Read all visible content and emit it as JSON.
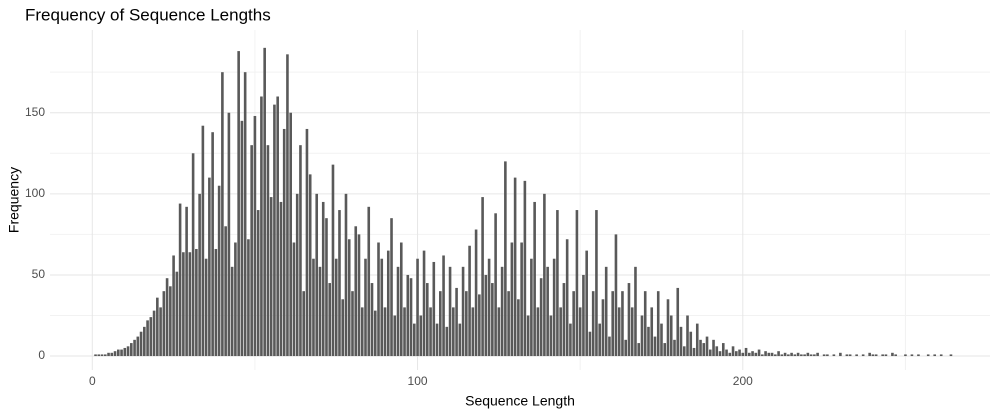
{
  "chart_data": {
    "type": "bar",
    "title": "Frequency of Sequence Lengths",
    "x_label": "Sequence Length",
    "y_label": "Frequency",
    "color": "#595959",
    "grid": true,
    "xlim": [
      -13,
      276
    ],
    "ylim": [
      -8.6,
      201
    ],
    "xticks": [
      0,
      100,
      200
    ],
    "yticks": [
      0,
      50,
      100,
      150
    ],
    "xminor": [
      50,
      150,
      250
    ],
    "yminor": [
      25,
      75,
      125,
      175
    ],
    "x": [
      1,
      2,
      3,
      4,
      5,
      6,
      7,
      8,
      9,
      10,
      11,
      12,
      13,
      14,
      15,
      16,
      17,
      18,
      19,
      20,
      21,
      22,
      23,
      24,
      25,
      26,
      27,
      28,
      29,
      30,
      31,
      32,
      33,
      34,
      35,
      36,
      37,
      38,
      39,
      40,
      41,
      42,
      43,
      44,
      45,
      46,
      47,
      48,
      49,
      50,
      51,
      52,
      53,
      54,
      55,
      56,
      57,
      58,
      59,
      60,
      61,
      62,
      63,
      64,
      65,
      66,
      67,
      68,
      69,
      70,
      71,
      72,
      73,
      74,
      75,
      76,
      77,
      78,
      79,
      80,
      81,
      82,
      83,
      84,
      85,
      86,
      87,
      88,
      89,
      90,
      91,
      92,
      93,
      94,
      95,
      96,
      97,
      98,
      99,
      100,
      101,
      102,
      103,
      104,
      105,
      106,
      107,
      108,
      109,
      110,
      111,
      112,
      113,
      114,
      115,
      116,
      117,
      118,
      119,
      120,
      121,
      122,
      123,
      124,
      125,
      126,
      127,
      128,
      129,
      130,
      131,
      132,
      133,
      134,
      135,
      136,
      137,
      138,
      139,
      140,
      141,
      142,
      143,
      144,
      145,
      146,
      147,
      148,
      149,
      150,
      151,
      152,
      153,
      154,
      155,
      156,
      157,
      158,
      159,
      160,
      161,
      162,
      163,
      164,
      165,
      166,
      167,
      168,
      169,
      170,
      171,
      172,
      173,
      174,
      175,
      176,
      177,
      178,
      179,
      180,
      181,
      182,
      183,
      184,
      185,
      186,
      187,
      188,
      189,
      190,
      191,
      192,
      193,
      194,
      195,
      196,
      197,
      198,
      199,
      200,
      201,
      202,
      203,
      204,
      205,
      206,
      207,
      208,
      209,
      210,
      211,
      212,
      213,
      214,
      215,
      216,
      217,
      218,
      219,
      220,
      221,
      222,
      223,
      224,
      225,
      226,
      227,
      228,
      229,
      230,
      231,
      232,
      233,
      234,
      235,
      236,
      237,
      238,
      239,
      240,
      241,
      242,
      243,
      244,
      245,
      246,
      247,
      248,
      249,
      250,
      251,
      252,
      253,
      254,
      255,
      256,
      257,
      258,
      259,
      260,
      261,
      262,
      263,
      264,
      265
    ],
    "values": [
      1,
      1,
      1,
      1,
      2,
      2,
      3,
      4,
      4,
      5,
      6,
      8,
      10,
      12,
      15,
      18,
      22,
      24,
      28,
      36,
      30,
      40,
      48,
      43,
      62,
      52,
      94,
      64,
      92,
      64,
      125,
      66,
      100,
      142,
      60,
      110,
      138,
      66,
      105,
      175,
      80,
      150,
      55,
      70,
      188,
      145,
      175,
      72,
      130,
      148,
      90,
      160,
      190,
      130,
      98,
      155,
      160,
      95,
      140,
      186,
      150,
      70,
      100,
      130,
      40,
      140,
      112,
      60,
      100,
      55,
      95,
      85,
      45,
      118,
      60,
      90,
      35,
      100,
      72,
      40,
      80,
      75,
      30,
      60,
      92,
      45,
      28,
      70,
      60,
      30,
      65,
      85,
      25,
      55,
      70,
      30,
      50,
      48,
      20,
      60,
      25,
      65,
      45,
      30,
      58,
      20,
      40,
      62,
      18,
      55,
      30,
      42,
      20,
      55,
      40,
      68,
      30,
      78,
      38,
      98,
      50,
      60,
      45,
      88,
      30,
      55,
      120,
      40,
      70,
      110,
      35,
      70,
      108,
      25,
      60,
      95,
      30,
      48,
      100,
      55,
      25,
      60,
      90,
      30,
      45,
      72,
      20,
      40,
      90,
      30,
      50,
      65,
      15,
      40,
      90,
      20,
      35,
      55,
      12,
      40,
      75,
      30,
      40,
      10,
      45,
      30,
      55,
      8,
      25,
      40,
      18,
      30,
      12,
      40,
      20,
      8,
      35,
      25,
      10,
      42,
      18,
      6,
      25,
      15,
      5,
      20,
      10,
      8,
      12,
      4,
      10,
      6,
      3,
      8,
      4,
      2,
      6,
      3,
      4,
      2,
      5,
      2,
      3,
      2,
      4,
      1,
      3,
      2,
      2,
      1,
      3,
      1,
      2,
      1,
      2,
      1,
      2,
      1,
      1,
      2,
      1,
      1,
      2,
      0,
      1,
      1,
      0,
      1,
      0,
      2,
      0,
      1,
      1,
      0,
      1,
      0,
      1,
      0,
      2,
      1,
      1,
      0,
      1,
      1,
      0,
      2,
      1,
      0,
      0,
      1,
      0,
      1,
      0,
      1,
      0,
      0,
      1,
      0,
      1,
      0,
      1,
      0,
      0,
      1,
      0
    ]
  }
}
